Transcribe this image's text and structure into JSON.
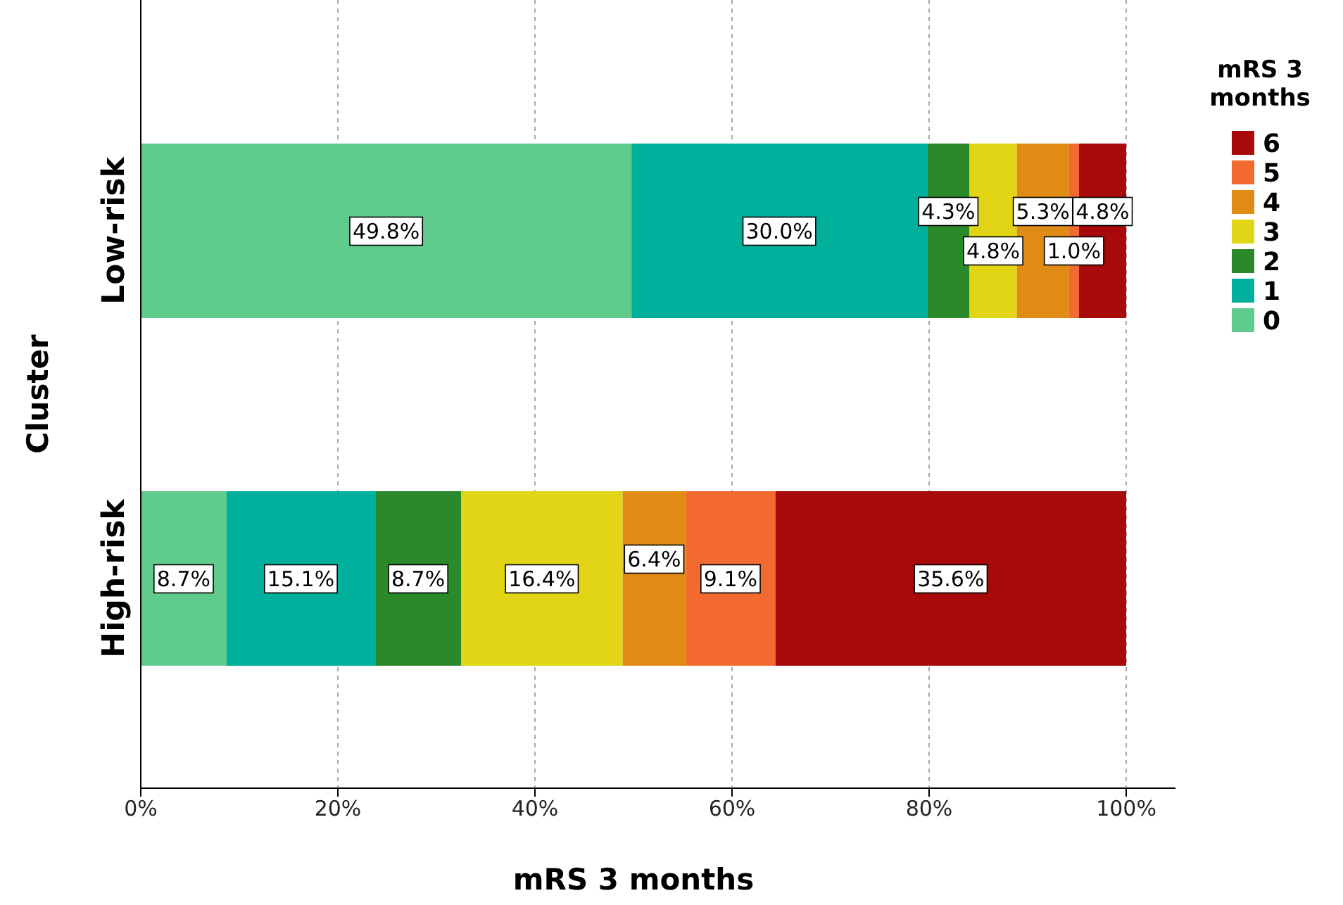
{
  "chart_data": {
    "type": "bar",
    "orientation": "horizontal",
    "stacked": true,
    "xlabel": "mRS 3 months",
    "ylabel": "Cluster",
    "legend_title": "mRS 3 months",
    "legend": "top right",
    "grid": "x",
    "categories": [
      "Low-risk",
      "High-risk"
    ],
    "xlim": [
      0,
      105
    ],
    "xticks": [
      {
        "value": 0,
        "label": "0%"
      },
      {
        "value": 20,
        "label": "20%"
      },
      {
        "value": 40,
        "label": "40%"
      },
      {
        "value": 60,
        "label": "60%"
      },
      {
        "value": 80,
        "label": "80%"
      },
      {
        "value": 100,
        "label": "100%"
      }
    ],
    "series": [
      {
        "name": "0",
        "color": "#5fcb8c",
        "values": [
          49.8,
          8.7
        ],
        "value_labels": [
          "49.8%",
          "8.7%"
        ]
      },
      {
        "name": "1",
        "color": "#00b09c",
        "values": [
          30.0,
          15.1
        ],
        "value_labels": [
          "30.0%",
          "15.1%"
        ]
      },
      {
        "name": "2",
        "color": "#2a8a2a",
        "values": [
          4.3,
          8.7
        ],
        "value_labels": [
          "4.3%",
          "8.7%"
        ]
      },
      {
        "name": "3",
        "color": "#e2d516",
        "values": [
          4.8,
          16.4
        ],
        "value_labels": [
          "4.8%",
          "16.4%"
        ]
      },
      {
        "name": "4",
        "color": "#e08c14",
        "values": [
          5.3,
          6.4
        ],
        "value_labels": [
          "5.3%",
          "6.4%"
        ]
      },
      {
        "name": "5",
        "color": "#f26a30",
        "values": [
          1.0,
          9.1
        ],
        "value_labels": [
          "1.0%",
          "9.1%"
        ]
      },
      {
        "name": "6",
        "color": "#a80a0a",
        "values": [
          4.8,
          35.6
        ],
        "value_labels": [
          "4.8%",
          "35.6%"
        ]
      }
    ]
  }
}
